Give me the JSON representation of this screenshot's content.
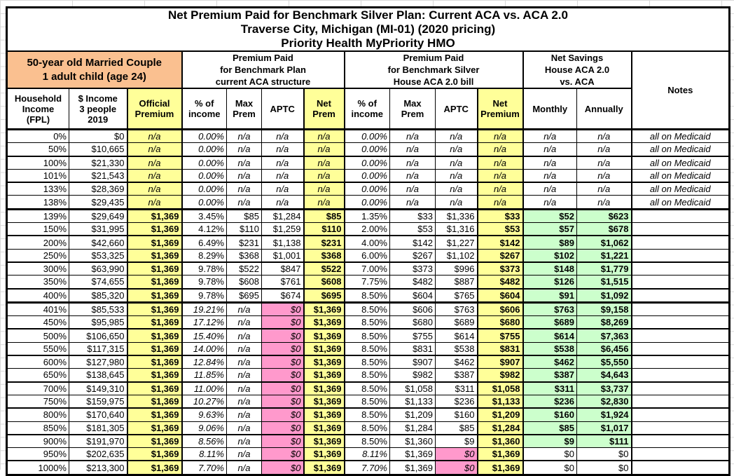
{
  "colors": {
    "yellow": "#FFFF99",
    "pink": "#FF99CC",
    "green": "#CCFFCC",
    "orange": "#FAC090"
  },
  "page": {
    "title_lines": [
      "Net Premium Paid for Benchmark Silver Plan: Current ACA vs. ACA 2.0",
      "Traverse City, Michigan (MI-01) (2020 pricing)",
      "Priority Health MyPriority HMO"
    ]
  },
  "groups": {
    "family": "50-year old Married Couple\n1 adult child (age 24)",
    "aca": "Premium Paid\nfor Benchmark Plan\ncurrent ACA structure",
    "aca2": "Premium Paid\nfor Benchmark Silver\nHouse ACA 2.0 bill",
    "savings": "Net Savings\nHouse ACA 2.0\nvs. ACA",
    "notes": "Notes"
  },
  "columns": [
    "Household\nIncome\n(FPL)",
    "$ Income\n3 people\n2019",
    "Official\nPremium",
    "% of\nincome",
    "Max\nPrem",
    "APTC",
    "Net\nPrem",
    "% of\nincome",
    "Max\nPrem",
    "APTC",
    "Net\nPremium",
    "Monthly",
    "Annually"
  ],
  "rows": [
    {
      "kind": "medicaid",
      "bb": "bb1",
      "cells": [
        "0%",
        "$0",
        "n/a",
        "0.00%",
        "n/a",
        "n/a",
        "n/a",
        "0.00%",
        "n/a",
        "n/a",
        "n/a",
        "n/a",
        "n/a",
        "all on Medicaid"
      ]
    },
    {
      "kind": "medicaid",
      "bb": "bb2",
      "cells": [
        "50%",
        "$10,665",
        "n/a",
        "0.00%",
        "n/a",
        "n/a",
        "n/a",
        "0.00%",
        "n/a",
        "n/a",
        "n/a",
        "n/a",
        "n/a",
        "all on Medicaid"
      ]
    },
    {
      "kind": "medicaid",
      "bb": "bb1",
      "cells": [
        "100%",
        "$21,330",
        "n/a",
        "0.00%",
        "n/a",
        "n/a",
        "n/a",
        "0.00%",
        "n/a",
        "n/a",
        "n/a",
        "n/a",
        "n/a",
        "all on Medicaid"
      ]
    },
    {
      "kind": "medicaid",
      "bb": "bb2",
      "cells": [
        "101%",
        "$21,543",
        "n/a",
        "0.00%",
        "n/a",
        "n/a",
        "n/a",
        "0.00%",
        "n/a",
        "n/a",
        "n/a",
        "n/a",
        "n/a",
        "all on Medicaid"
      ]
    },
    {
      "kind": "medicaid",
      "bb": "bb1",
      "cells": [
        "133%",
        "$28,369",
        "n/a",
        "0.00%",
        "n/a",
        "n/a",
        "n/a",
        "0.00%",
        "n/a",
        "n/a",
        "n/a",
        "n/a",
        "n/a",
        "all on Medicaid"
      ]
    },
    {
      "kind": "medicaid",
      "bb": "bb3",
      "cells": [
        "138%",
        "$29,435",
        "n/a",
        "0.00%",
        "n/a",
        "n/a",
        "n/a",
        "0.00%",
        "n/a",
        "n/a",
        "n/a",
        "n/a",
        "n/a",
        "all on Medicaid"
      ]
    },
    {
      "kind": "subsidy",
      "bb": "bb1",
      "cells": [
        "139%",
        "$29,649",
        "$1,369",
        "3.45%",
        "$85",
        "$1,284",
        "$85",
        "1.35%",
        "$33",
        "$1,336",
        "$33",
        "$52",
        "$623",
        ""
      ]
    },
    {
      "kind": "subsidy",
      "bb": "bb2",
      "cells": [
        "150%",
        "$31,995",
        "$1,369",
        "4.12%",
        "$110",
        "$1,259",
        "$110",
        "2.00%",
        "$53",
        "$1,316",
        "$53",
        "$57",
        "$678",
        ""
      ]
    },
    {
      "kind": "subsidy",
      "bb": "bb1",
      "cells": [
        "200%",
        "$42,660",
        "$1,369",
        "6.49%",
        "$231",
        "$1,138",
        "$231",
        "4.00%",
        "$142",
        "$1,227",
        "$142",
        "$89",
        "$1,062",
        ""
      ]
    },
    {
      "kind": "subsidy",
      "bb": "bb2",
      "cells": [
        "250%",
        "$53,325",
        "$1,369",
        "8.29%",
        "$368",
        "$1,001",
        "$368",
        "6.00%",
        "$267",
        "$1,102",
        "$267",
        "$102",
        "$1,221",
        ""
      ]
    },
    {
      "kind": "subsidy",
      "bb": "bb1",
      "cells": [
        "300%",
        "$63,990",
        "$1,369",
        "9.78%",
        "$522",
        "$847",
        "$522",
        "7.00%",
        "$373",
        "$996",
        "$373",
        "$148",
        "$1,779",
        ""
      ]
    },
    {
      "kind": "subsidy",
      "bb": "bb2",
      "cells": [
        "350%",
        "$74,655",
        "$1,369",
        "9.78%",
        "$608",
        "$761",
        "$608",
        "7.75%",
        "$482",
        "$887",
        "$482",
        "$126",
        "$1,515",
        ""
      ]
    },
    {
      "kind": "subsidy",
      "bb": "bb3",
      "cells": [
        "400%",
        "$85,320",
        "$1,369",
        "9.78%",
        "$695",
        "$674",
        "$695",
        "8.50%",
        "$604",
        "$765",
        "$604",
        "$91",
        "$1,092",
        ""
      ]
    },
    {
      "kind": "cliff",
      "bb": "bb1",
      "cells": [
        "401%",
        "$85,533",
        "$1,369",
        "19.21%",
        "n/a",
        "$0",
        "$1,369",
        "8.50%",
        "$606",
        "$763",
        "$606",
        "$763",
        "$9,158",
        ""
      ]
    },
    {
      "kind": "cliff",
      "bb": "bb2",
      "cells": [
        "450%",
        "$95,985",
        "$1,369",
        "17.12%",
        "n/a",
        "$0",
        "$1,369",
        "8.50%",
        "$680",
        "$689",
        "$680",
        "$689",
        "$8,269",
        ""
      ]
    },
    {
      "kind": "cliff",
      "bb": "bb1",
      "cells": [
        "500%",
        "$106,650",
        "$1,369",
        "15.40%",
        "n/a",
        "$0",
        "$1,369",
        "8.50%",
        "$755",
        "$614",
        "$755",
        "$614",
        "$7,363",
        ""
      ]
    },
    {
      "kind": "cliff",
      "bb": "bb2",
      "cells": [
        "550%",
        "$117,315",
        "$1,369",
        "14.00%",
        "n/a",
        "$0",
        "$1,369",
        "8.50%",
        "$831",
        "$538",
        "$831",
        "$538",
        "$6,456",
        ""
      ]
    },
    {
      "kind": "cliff",
      "bb": "bb1",
      "cells": [
        "600%",
        "$127,980",
        "$1,369",
        "12.84%",
        "n/a",
        "$0",
        "$1,369",
        "8.50%",
        "$907",
        "$462",
        "$907",
        "$462",
        "$5,550",
        ""
      ]
    },
    {
      "kind": "cliff",
      "bb": "bb2",
      "cells": [
        "650%",
        "$138,645",
        "$1,369",
        "11.85%",
        "n/a",
        "$0",
        "$1,369",
        "8.50%",
        "$982",
        "$387",
        "$982",
        "$387",
        "$4,643",
        ""
      ]
    },
    {
      "kind": "cliff",
      "bb": "bb1",
      "cells": [
        "700%",
        "$149,310",
        "$1,369",
        "11.00%",
        "n/a",
        "$0",
        "$1,369",
        "8.50%",
        "$1,058",
        "$311",
        "$1,058",
        "$311",
        "$3,737",
        ""
      ]
    },
    {
      "kind": "cliff",
      "bb": "bb2",
      "cells": [
        "750%",
        "$159,975",
        "$1,369",
        "10.27%",
        "n/a",
        "$0",
        "$1,369",
        "8.50%",
        "$1,133",
        "$236",
        "$1,133",
        "$236",
        "$2,830",
        ""
      ]
    },
    {
      "kind": "cliff",
      "bb": "bb1",
      "cells": [
        "800%",
        "$170,640",
        "$1,369",
        "9.63%",
        "n/a",
        "$0",
        "$1,369",
        "8.50%",
        "$1,209",
        "$160",
        "$1,209",
        "$160",
        "$1,924",
        ""
      ]
    },
    {
      "kind": "cliff",
      "bb": "bb2",
      "cells": [
        "850%",
        "$181,305",
        "$1,369",
        "9.06%",
        "n/a",
        "$0",
        "$1,369",
        "8.50%",
        "$1,284",
        "$85",
        "$1,284",
        "$85",
        "$1,017",
        ""
      ]
    },
    {
      "kind": "cliff",
      "bb": "bb1",
      "cells": [
        "900%",
        "$191,970",
        "$1,369",
        "8.56%",
        "n/a",
        "$0",
        "$1,369",
        "8.50%",
        "$1,360",
        "$9",
        "$1,360",
        "$9",
        "$111",
        ""
      ]
    },
    {
      "kind": "cap",
      "bb": "bb2",
      "cells": [
        "950%",
        "$202,635",
        "$1,369",
        "8.11%",
        "n/a",
        "$0",
        "$1,369",
        "8.11%",
        "$1,369",
        "$0",
        "$1,369",
        "$0",
        "$0",
        ""
      ]
    },
    {
      "kind": "cap",
      "bb": "bb1",
      "cells": [
        "1000%",
        "$213,300",
        "$1,369",
        "7.70%",
        "n/a",
        "$0",
        "$1,369",
        "7.70%",
        "$1,369",
        "$0",
        "$1,369",
        "$0",
        "$0",
        ""
      ]
    }
  ]
}
